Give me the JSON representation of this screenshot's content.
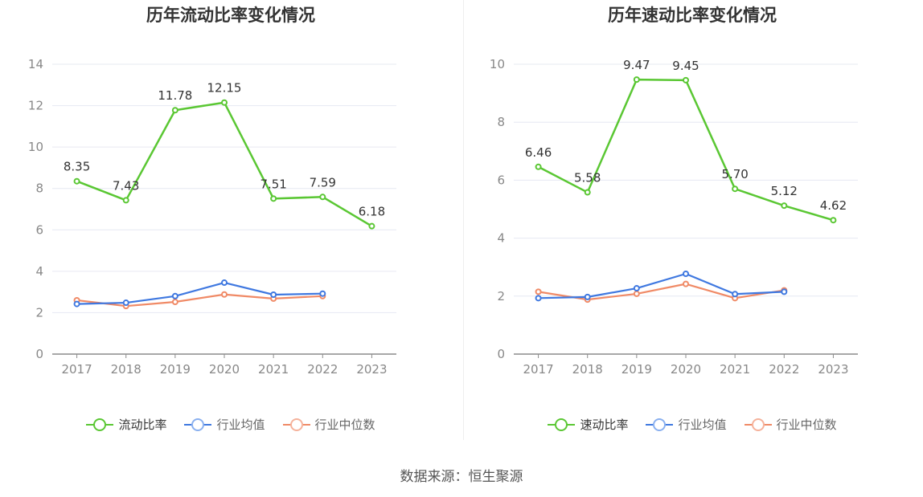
{
  "source_text": "数据来源：恒生聚源",
  "legend_colors": [
    "#5ac733",
    "#3f78e0",
    "#f08a66"
  ],
  "legend_hollow_colors": [
    "#5ac733",
    "#8ab0ef",
    "#f5b29b"
  ],
  "chart_data": [
    {
      "type": "line",
      "title": "历年流动比率变化情况",
      "categories": [
        "2017",
        "2018",
        "2019",
        "2020",
        "2021",
        "2022",
        "2023"
      ],
      "ylim": [
        0,
        14
      ],
      "yticks": [
        0,
        2,
        4,
        6,
        8,
        10,
        12,
        14
      ],
      "grid": true,
      "legend_position": "bottom",
      "series": [
        {
          "name": "流动比率",
          "values": [
            8.35,
            7.43,
            11.78,
            12.15,
            7.51,
            7.59,
            6.18
          ],
          "labels": [
            "8.35",
            "7.43",
            "11.78",
            "12.15",
            "7.51",
            "7.59",
            "6.18"
          ],
          "color": "#5ac733"
        },
        {
          "name": "行业均值",
          "values": [
            2.42,
            2.48,
            2.8,
            3.45,
            2.87,
            2.92,
            null
          ],
          "color": "#3f78e0"
        },
        {
          "name": "行业中位数",
          "values": [
            2.6,
            2.32,
            2.52,
            2.88,
            2.68,
            2.8,
            null
          ],
          "color": "#f08a66"
        }
      ]
    },
    {
      "type": "line",
      "title": "历年速动比率变化情况",
      "categories": [
        "2017",
        "2018",
        "2019",
        "2020",
        "2021",
        "2022",
        "2023"
      ],
      "ylim": [
        0,
        10
      ],
      "yticks": [
        0,
        2,
        4,
        6,
        8,
        10
      ],
      "grid": true,
      "legend_position": "bottom",
      "series": [
        {
          "name": "速动比率",
          "values": [
            6.46,
            5.58,
            9.47,
            9.45,
            5.7,
            5.12,
            4.62
          ],
          "labels": [
            "6.46",
            "5.58",
            "9.47",
            "9.45",
            "5.70",
            "5.12",
            "4.62"
          ],
          "color": "#5ac733"
        },
        {
          "name": "行业均值",
          "values": [
            1.93,
            1.97,
            2.27,
            2.77,
            2.07,
            2.15,
            null
          ],
          "color": "#3f78e0"
        },
        {
          "name": "行业中位数",
          "values": [
            2.15,
            1.88,
            2.08,
            2.42,
            1.93,
            2.2,
            null
          ],
          "color": "#f08a66"
        }
      ]
    }
  ]
}
